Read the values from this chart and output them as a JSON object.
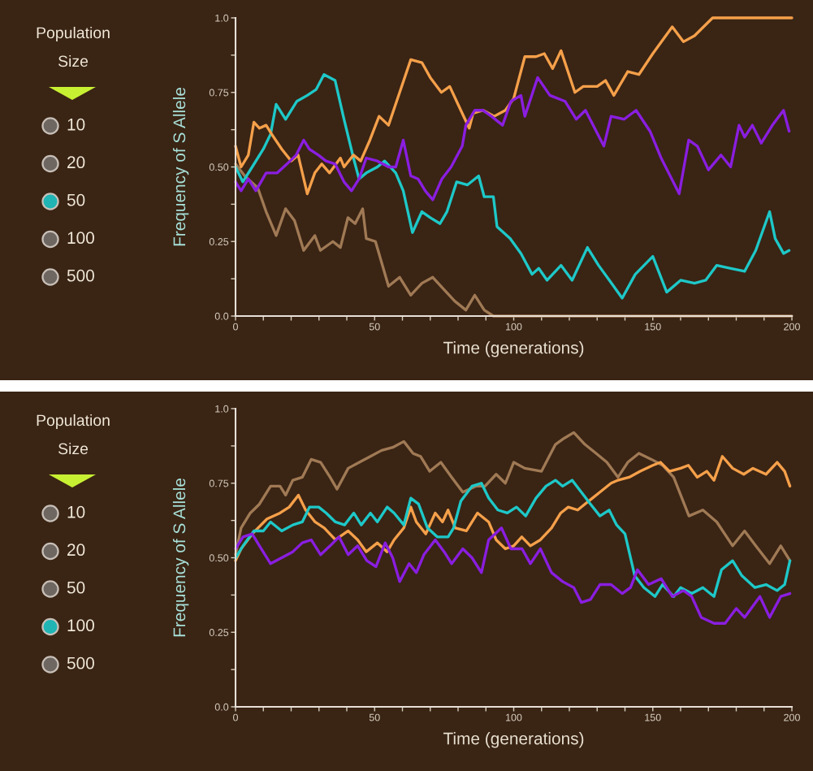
{
  "chart_data": [
    {
      "type": "other",
      "title": "Population Size",
      "categories": [
        "10",
        "20",
        "50",
        "100",
        "500"
      ],
      "colors": [
        "#6e6660",
        "#6e6660",
        "#20b4b4",
        "#6e6660",
        "#6e6660"
      ]
    },
    {
      "type": "line",
      "xlabel": "Time (generations)",
      "ylabel": "Frequency of S Allele",
      "xlim": [
        0,
        200
      ],
      "ylim": [
        0,
        1
      ],
      "xticks": [
        0,
        {
          "value": 10,
          "label": null
        },
        {
          "value": 20,
          "label": null
        },
        {
          "value": 30,
          "label": null
        },
        {
          "value": 40,
          "label": null
        },
        50,
        {
          "value": 60,
          "label": null
        },
        {
          "value": 70,
          "label": null
        },
        {
          "value": 80,
          "label": null
        },
        {
          "value": 90,
          "label": null
        },
        100,
        {
          "value": 110,
          "label": null
        },
        {
          "value": 120,
          "label": null
        },
        {
          "value": 130,
          "label": null
        },
        {
          "value": 140,
          "label": null
        },
        150,
        {
          "value": 160,
          "label": null
        },
        {
          "value": 170,
          "label": null
        },
        {
          "value": 180,
          "label": null
        },
        {
          "value": 190,
          "label": null
        },
        200
      ],
      "yticks": [
        {
          "value": 0,
          "label": "0.0"
        },
        {
          "value": 0.125,
          "label": null
        },
        {
          "value": 0.25,
          "label": "0.25"
        },
        {
          "value": 0.375,
          "label": null
        },
        {
          "value": 0.5,
          "label": "0.50"
        },
        {
          "value": 0.625,
          "label": null
        },
        {
          "value": 0.75,
          "label": "0.75"
        },
        {
          "value": 0.875,
          "label": null
        },
        {
          "value": 1,
          "label": "1.0"
        }
      ],
      "grid": false,
      "legend": false,
      "series": [
        {
          "color": "#a07a55",
          "x": [
            0,
            3.3,
            8,
            11,
            14.6,
            18,
            21.2,
            24.5,
            28.5,
            30.5,
            35,
            37.7,
            40.4,
            43,
            45.7,
            47,
            50.3,
            55,
            59,
            63,
            67,
            70.9,
            74.8,
            78.8,
            82.8,
            86,
            89.4,
            92.7,
            200
          ],
          "values": [
            0.51,
            0.47,
            0.43,
            0.35,
            0.27,
            0.36,
            0.32,
            0.22,
            0.27,
            0.22,
            0.25,
            0.23,
            0.33,
            0.31,
            0.36,
            0.26,
            0.25,
            0.1,
            0.13,
            0.07,
            0.11,
            0.13,
            0.09,
            0.05,
            0.02,
            0.07,
            0.02,
            0,
            0
          ]
        },
        {
          "color": "#1ec8c8",
          "x": [
            0,
            2.6,
            6,
            10,
            12.6,
            14.6,
            18,
            22,
            25.8,
            29,
            31.8,
            35.8,
            39,
            42.4,
            44.4,
            47,
            51,
            53.6,
            57.6,
            60.3,
            63.6,
            67,
            70,
            73.5,
            76,
            79.5,
            83.4,
            87.4,
            89.4,
            92.7,
            94,
            98.7,
            102.6,
            106.6,
            109,
            112,
            117,
            121,
            126.5,
            130.5,
            134.4,
            139,
            143.7,
            150,
            155,
            160,
            165,
            169,
            173,
            178,
            183,
            187,
            192,
            194,
            197,
            199
          ],
          "values": [
            0.5,
            0.45,
            0.5,
            0.56,
            0.61,
            0.71,
            0.66,
            0.72,
            0.74,
            0.76,
            0.81,
            0.79,
            0.66,
            0.53,
            0.46,
            0.48,
            0.5,
            0.52,
            0.48,
            0.42,
            0.28,
            0.35,
            0.33,
            0.31,
            0.35,
            0.45,
            0.44,
            0.47,
            0.4,
            0.4,
            0.3,
            0.26,
            0.21,
            0.14,
            0.16,
            0.12,
            0.17,
            0.12,
            0.23,
            0.17,
            0.12,
            0.06,
            0.14,
            0.2,
            0.08,
            0.12,
            0.11,
            0.12,
            0.17,
            0.16,
            0.15,
            0.22,
            0.35,
            0.26,
            0.21,
            0.22
          ]
        },
        {
          "color": "#f5a04a",
          "x": [
            0,
            2,
            4.6,
            6.6,
            8.6,
            11,
            13,
            16.6,
            20,
            22.5,
            25.8,
            28.5,
            31,
            33.8,
            37.7,
            39,
            42.4,
            45,
            48.3,
            51.6,
            55,
            59,
            63,
            67,
            70,
            74,
            77,
            80,
            84,
            85.4,
            89,
            93,
            97,
            100,
            104,
            108,
            111,
            114,
            117,
            122,
            125,
            130,
            133,
            136,
            141,
            145,
            150,
            157,
            161,
            165,
            171.5,
            200
          ],
          "values": [
            0.57,
            0.5,
            0.54,
            0.65,
            0.63,
            0.64,
            0.61,
            0.56,
            0.52,
            0.54,
            0.41,
            0.48,
            0.51,
            0.48,
            0.53,
            0.5,
            0.54,
            0.52,
            0.59,
            0.67,
            0.64,
            0.75,
            0.86,
            0.85,
            0.8,
            0.75,
            0.77,
            0.71,
            0.63,
            0.68,
            0.69,
            0.67,
            0.69,
            0.73,
            0.87,
            0.87,
            0.88,
            0.83,
            0.89,
            0.75,
            0.77,
            0.77,
            0.79,
            0.74,
            0.82,
            0.81,
            0.88,
            0.97,
            0.92,
            0.94,
            1,
            1
          ]
        },
        {
          "color": "#8a1ee0",
          "x": [
            0,
            2,
            4.6,
            7.3,
            11,
            15,
            18.5,
            21.8,
            24.5,
            26.5,
            29.8,
            32.5,
            35.8,
            39,
            41.7,
            44.4,
            47,
            51,
            55,
            57.6,
            60.3,
            63,
            65.6,
            68.2,
            70.9,
            74.2,
            77.5,
            81.5,
            82.8,
            86,
            89,
            92,
            96,
            99,
            102.6,
            104,
            108.6,
            113,
            118.5,
            122.5,
            125.8,
            132.4,
            135,
            139.7,
            144,
            149,
            153,
            159.5,
            162.9,
            166,
            170,
            174.5,
            178,
            181,
            183,
            185.8,
            189,
            193,
            197,
            199
          ],
          "values": [
            0.45,
            0.42,
            0.46,
            0.42,
            0.48,
            0.48,
            0.51,
            0.54,
            0.59,
            0.56,
            0.54,
            0.52,
            0.51,
            0.45,
            0.42,
            0.46,
            0.53,
            0.52,
            0.5,
            0.5,
            0.59,
            0.47,
            0.46,
            0.42,
            0.39,
            0.46,
            0.5,
            0.57,
            0.64,
            0.69,
            0.69,
            0.67,
            0.64,
            0.72,
            0.74,
            0.67,
            0.8,
            0.74,
            0.72,
            0.66,
            0.69,
            0.57,
            0.67,
            0.66,
            0.69,
            0.62,
            0.53,
            0.41,
            0.59,
            0.57,
            0.49,
            0.54,
            0.5,
            0.64,
            0.6,
            0.64,
            0.58,
            0.64,
            0.69,
            0.62
          ]
        }
      ]
    },
    {
      "type": "other",
      "title": "Population Size",
      "categories": [
        "10",
        "20",
        "50",
        "100",
        "500"
      ],
      "colors": [
        "#6e6660",
        "#6e6660",
        "#6e6660",
        "#20b4b4",
        "#6e6660"
      ]
    },
    {
      "type": "line",
      "xlabel": "Time (generations)",
      "ylabel": "Frequency of S Allele",
      "xlim": [
        0,
        200
      ],
      "ylim": [
        0,
        1
      ],
      "xticks": [
        0,
        {
          "value": 10,
          "label": null
        },
        {
          "value": 20,
          "label": null
        },
        {
          "value": 30,
          "label": null
        },
        {
          "value": 40,
          "label": null
        },
        50,
        {
          "value": 60,
          "label": null
        },
        {
          "value": 70,
          "label": null
        },
        {
          "value": 80,
          "label": null
        },
        {
          "value": 90,
          "label": null
        },
        100,
        {
          "value": 110,
          "label": null
        },
        {
          "value": 120,
          "label": null
        },
        {
          "value": 130,
          "label": null
        },
        {
          "value": 140,
          "label": null
        },
        150,
        {
          "value": 160,
          "label": null
        },
        {
          "value": 170,
          "label": null
        },
        {
          "value": 180,
          "label": null
        },
        {
          "value": 190,
          "label": null
        },
        200
      ],
      "yticks": [
        {
          "value": 0,
          "label": "0.0"
        },
        {
          "value": 0.125,
          "label": null
        },
        {
          "value": 0.25,
          "label": "0.25"
        },
        {
          "value": 0.375,
          "label": null
        },
        {
          "value": 0.5,
          "label": "0.50"
        },
        {
          "value": 0.625,
          "label": null
        },
        {
          "value": 0.75,
          "label": "0.75"
        },
        {
          "value": 0.875,
          "label": null
        },
        {
          "value": 1,
          "label": "1.0"
        }
      ],
      "grid": false,
      "legend": false,
      "series": [
        {
          "color": "#a07a55",
          "x": [
            0,
            2,
            5.3,
            8.6,
            12.6,
            16,
            18,
            20.6,
            24,
            27.2,
            30.6,
            34,
            36.5,
            40.5,
            44.5,
            48.5,
            52.5,
            56.5,
            60.5,
            63.8,
            66.5,
            69.8,
            73.8,
            77.7,
            81.7,
            86.4,
            89.7,
            93.7,
            97,
            100,
            104,
            110,
            115,
            118,
            121.6,
            125.6,
            129.6,
            133.5,
            137.5,
            141,
            145,
            149.5,
            153.5,
            157.5,
            163,
            168,
            173,
            178.7,
            183,
            187,
            192,
            196,
            199.3
          ],
          "values": [
            0.51,
            0.6,
            0.65,
            0.68,
            0.74,
            0.74,
            0.71,
            0.76,
            0.77,
            0.83,
            0.82,
            0.77,
            0.73,
            0.8,
            0.82,
            0.84,
            0.86,
            0.87,
            0.89,
            0.85,
            0.84,
            0.79,
            0.82,
            0.77,
            0.72,
            0.74,
            0.74,
            0.78,
            0.75,
            0.82,
            0.8,
            0.79,
            0.88,
            0.9,
            0.92,
            0.88,
            0.85,
            0.82,
            0.77,
            0.82,
            0.85,
            0.83,
            0.81,
            0.77,
            0.64,
            0.66,
            0.62,
            0.54,
            0.59,
            0.54,
            0.48,
            0.54,
            0.49
          ]
        },
        {
          "color": "#f5a04a",
          "x": [
            0,
            2,
            6,
            11.3,
            16,
            19.3,
            22.6,
            25.2,
            28.6,
            31.9,
            35.9,
            40.5,
            43.9,
            47,
            51,
            54.5,
            57,
            60.5,
            63,
            65,
            68.4,
            71.8,
            74.4,
            76.4,
            79,
            83,
            87,
            91,
            93.7,
            97,
            100,
            102.9,
            106,
            109.6,
            113.6,
            116.9,
            119.6,
            123,
            125.6,
            128.3,
            131,
            135,
            137.5,
            141.5,
            145.5,
            150,
            152.8,
            156,
            160,
            162.8,
            166,
            169.4,
            172,
            175,
            178.7,
            182.7,
            186,
            190.7,
            194.7,
            197.4,
            199.3
          ],
          "values": [
            0.49,
            0.53,
            0.58,
            0.63,
            0.65,
            0.67,
            0.71,
            0.66,
            0.62,
            0.6,
            0.56,
            0.59,
            0.56,
            0.52,
            0.55,
            0.52,
            0.56,
            0.6,
            0.67,
            0.62,
            0.58,
            0.65,
            0.62,
            0.66,
            0.6,
            0.59,
            0.65,
            0.62,
            0.56,
            0.53,
            0.54,
            0.57,
            0.54,
            0.56,
            0.6,
            0.65,
            0.67,
            0.66,
            0.68,
            0.7,
            0.72,
            0.75,
            0.76,
            0.77,
            0.79,
            0.81,
            0.82,
            0.79,
            0.8,
            0.81,
            0.77,
            0.79,
            0.76,
            0.84,
            0.8,
            0.78,
            0.8,
            0.78,
            0.82,
            0.79,
            0.74
          ]
        },
        {
          "color": "#1ec8c8",
          "x": [
            0,
            2.7,
            6.6,
            10,
            12.6,
            16.6,
            20.6,
            24,
            26.6,
            29.9,
            32.6,
            35.9,
            39.2,
            42.5,
            45.2,
            48.5,
            51,
            54.5,
            57,
            60.5,
            63,
            65.8,
            69,
            72.5,
            76.4,
            78.4,
            81,
            85,
            88.4,
            91,
            94.3,
            97.7,
            101,
            104.3,
            108,
            111.6,
            115,
            117.6,
            121,
            124.3,
            127.6,
            131,
            134.3,
            137,
            140,
            143.5,
            146.8,
            150.8,
            153.5,
            157.5,
            160,
            164,
            168,
            172,
            174.7,
            178.7,
            182,
            186.7,
            190.7,
            194.7,
            197.4,
            199.3
          ],
          "values": [
            0.5,
            0.54,
            0.59,
            0.59,
            0.62,
            0.59,
            0.61,
            0.62,
            0.67,
            0.67,
            0.65,
            0.62,
            0.61,
            0.65,
            0.61,
            0.65,
            0.62,
            0.67,
            0.65,
            0.61,
            0.7,
            0.68,
            0.6,
            0.57,
            0.57,
            0.6,
            0.69,
            0.74,
            0.75,
            0.7,
            0.66,
            0.65,
            0.67,
            0.64,
            0.7,
            0.74,
            0.76,
            0.74,
            0.76,
            0.72,
            0.68,
            0.64,
            0.66,
            0.61,
            0.58,
            0.44,
            0.4,
            0.37,
            0.41,
            0.37,
            0.4,
            0.38,
            0.4,
            0.37,
            0.46,
            0.49,
            0.44,
            0.4,
            0.41,
            0.39,
            0.41,
            0.49
          ]
        },
        {
          "color": "#8a1ee0",
          "x": [
            0,
            2.7,
            6,
            8.6,
            12.6,
            16.6,
            20.6,
            24,
            27.2,
            30.6,
            34,
            37.2,
            40.5,
            43.9,
            47.2,
            50.5,
            53.8,
            56.5,
            59,
            62.4,
            65,
            67.7,
            71.8,
            75,
            77.7,
            81.7,
            85,
            88.4,
            91,
            95.6,
            99,
            103,
            106,
            109.6,
            113.6,
            117.6,
            121.6,
            124.3,
            127.6,
            131,
            135,
            139,
            142,
            144.5,
            148.5,
            153,
            157,
            161,
            164,
            167.4,
            172,
            176,
            180,
            183,
            188.5,
            192,
            196,
            199.3
          ],
          "values": [
            0.53,
            0.57,
            0.58,
            0.54,
            0.48,
            0.5,
            0.52,
            0.55,
            0.56,
            0.51,
            0.54,
            0.57,
            0.51,
            0.54,
            0.49,
            0.47,
            0.55,
            0.5,
            0.42,
            0.48,
            0.45,
            0.51,
            0.56,
            0.52,
            0.48,
            0.53,
            0.5,
            0.45,
            0.56,
            0.6,
            0.53,
            0.53,
            0.48,
            0.53,
            0.45,
            0.42,
            0.4,
            0.35,
            0.36,
            0.41,
            0.41,
            0.38,
            0.4,
            0.46,
            0.41,
            0.43,
            0.37,
            0.39,
            0.37,
            0.3,
            0.28,
            0.28,
            0.33,
            0.3,
            0.37,
            0.3,
            0.37,
            0.38
          ]
        }
      ]
    }
  ]
}
